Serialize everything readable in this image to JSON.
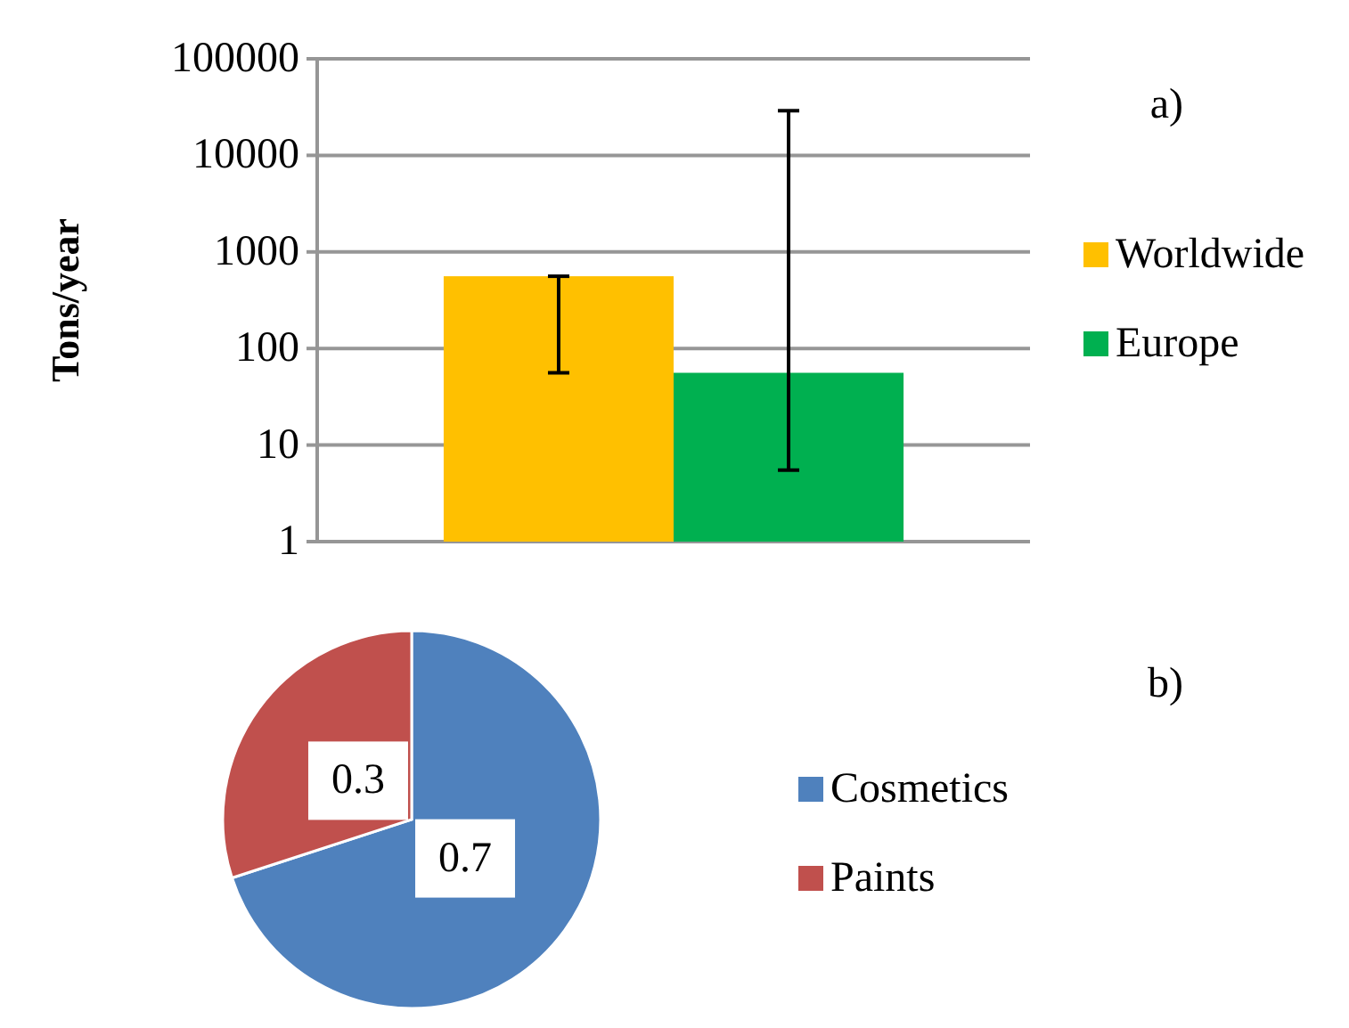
{
  "chart_data": [
    {
      "type": "bar",
      "ylabel": "Tons/year",
      "categories": [
        null
      ],
      "log": true,
      "ylim": [
        1,
        100000
      ],
      "yticks": [
        1,
        10,
        100,
        1000,
        10000,
        100000
      ],
      "grid": "y",
      "legend": "right",
      "annotations": [
        "a)"
      ],
      "series": [
        {
          "name": "Worldwide",
          "color": "#ffc000",
          "values": [
            560
          ],
          "errors": [
            [
              56,
              560
            ]
          ]
        },
        {
          "name": "Europe",
          "color": "#00b050",
          "values": [
            56
          ],
          "errors": [
            [
              5.5,
              29000
            ]
          ]
        }
      ]
    },
    {
      "type": "pie",
      "categories": [
        "Cosmetics",
        "Paints"
      ],
      "values": [
        0.7,
        0.3
      ],
      "colors": [
        "#4f81bd",
        "#c0504d"
      ],
      "data_labels": true,
      "legend": "right",
      "annotations": [
        "b)"
      ]
    }
  ]
}
